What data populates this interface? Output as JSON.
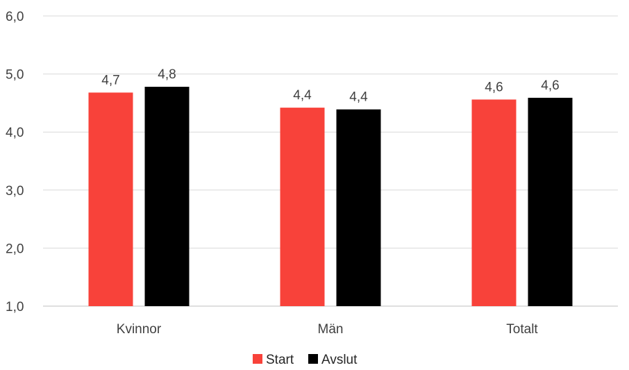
{
  "chart_data": {
    "type": "bar",
    "categories": [
      "Kvinnor",
      "Män",
      "Totalt"
    ],
    "series": [
      {
        "name": "Start",
        "values": [
          4.68,
          4.42,
          4.56
        ],
        "labels": [
          "4,7",
          "4,4",
          "4,6"
        ],
        "color": "#f8423a"
      },
      {
        "name": "Avslut",
        "values": [
          4.78,
          4.39,
          4.59
        ],
        "labels": [
          "4,8",
          "4,4",
          "4,6"
        ],
        "color": "#000000"
      }
    ],
    "ylim": [
      1.0,
      6.0
    ],
    "yticks": [
      1.0,
      2.0,
      3.0,
      4.0,
      5.0,
      6.0
    ],
    "ytick_labels": [
      "1,0",
      "2,0",
      "3,0",
      "4,0",
      "5,0",
      "6,0"
    ],
    "title": "",
    "xlabel": "",
    "ylabel": "",
    "grid": true,
    "legend_position": "bottom"
  }
}
